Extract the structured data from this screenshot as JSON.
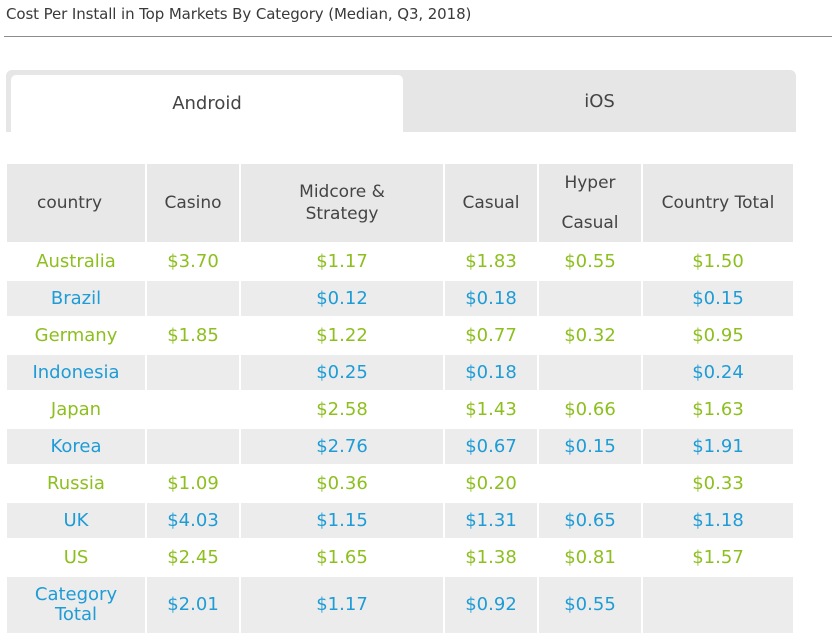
{
  "page": {
    "title": "Cost Per Install in Top Markets By Category (Median, Q3, 2018)"
  },
  "tabs": [
    {
      "label": "Android",
      "active": true
    },
    {
      "label": "iOS",
      "active": false
    }
  ],
  "table": {
    "headers": {
      "country": "country",
      "casino": "Casino",
      "midcore": "Midcore &\nStrategy",
      "casual": "Casual",
      "hyper_line1": "Hyper",
      "hyper_line2": "Casual",
      "total": "Country Total"
    },
    "rows": [
      {
        "country": "Australia",
        "casino": "$3.70",
        "midcore": "$1.17",
        "casual": "$1.83",
        "hyper": "$0.55",
        "total": "$1.50"
      },
      {
        "country": "Brazil",
        "casino": "",
        "midcore": "$0.12",
        "casual": "$0.18",
        "hyper": "",
        "total": "$0.15"
      },
      {
        "country": "Germany",
        "casino": "$1.85",
        "midcore": "$1.22",
        "casual": "$0.77",
        "hyper": "$0.32",
        "total": "$0.95"
      },
      {
        "country": "Indonesia",
        "casino": "",
        "midcore": "$0.25",
        "casual": "$0.18",
        "hyper": "",
        "total": "$0.24"
      },
      {
        "country": "Japan",
        "casino": "",
        "midcore": "$2.58",
        "casual": "$1.43",
        "hyper": "$0.66",
        "total": "$1.63"
      },
      {
        "country": "Korea",
        "casino": "",
        "midcore": "$2.76",
        "casual": "$0.67",
        "hyper": "$0.15",
        "total": "$1.91"
      },
      {
        "country": "Russia",
        "casino": "$1.09",
        "midcore": "$0.36",
        "casual": "$0.20",
        "hyper": "",
        "total": "$0.33"
      },
      {
        "country": "UK",
        "casino": "$4.03",
        "midcore": "$1.15",
        "casual": "$1.31",
        "hyper": "$0.65",
        "total": "$1.18"
      },
      {
        "country": "US",
        "casino": "$2.45",
        "midcore": "$1.65",
        "casual": "$1.38",
        "hyper": "$0.81",
        "total": "$1.57"
      }
    ],
    "category_total": {
      "label": "Category\nTotal",
      "casino": "$2.01",
      "midcore": "$1.17",
      "casual": "$0.92",
      "hyper": "$0.55",
      "total": ""
    }
  },
  "colors": {
    "green_text": "#8dbf1f",
    "blue_text": "#1e9cd6",
    "header_bg": "#e8e8e8",
    "stripe_bg": "#ececec"
  }
}
